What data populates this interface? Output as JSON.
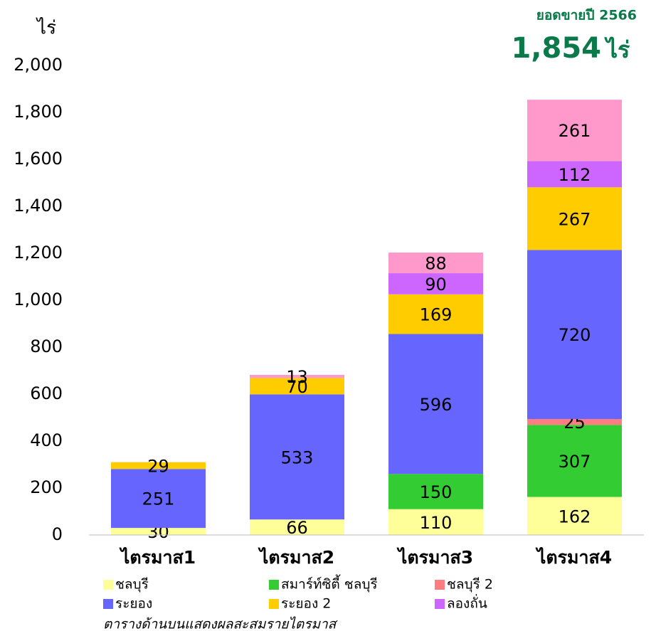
{
  "chart_data": {
    "type": "stacked_bar",
    "y_label": "ไร่",
    "annotation": {
      "label": "ยอดขายปี 2566",
      "total": "1,854",
      "unit": "ไร่"
    },
    "footnote": "ตารางด้านบนแสดงผลสะสมรายไตรมาส",
    "categories": [
      "ไตรมาส1",
      "ไตรมาส2",
      "ไตรมาส3",
      "ไตรมาส4"
    ],
    "series": [
      {
        "name": "ชลบุรี",
        "color": "#ffff99",
        "values": [
          30,
          66,
          110,
          162
        ]
      },
      {
        "name": "สมาร์ท์ซิตี้ ชลบุรี",
        "color": "#33cc33",
        "values": [
          null,
          null,
          150,
          307
        ]
      },
      {
        "name": "ชลบุรี 2",
        "color": "#ff7c80",
        "values": [
          null,
          null,
          null,
          25
        ]
      },
      {
        "name": "ระยอง",
        "color": "#6666ff",
        "values": [
          251,
          533,
          596,
          720
        ]
      },
      {
        "name": "ระยอง 2",
        "color": "#ffcc00",
        "values": [
          29,
          70,
          169,
          267
        ]
      },
      {
        "name": "ลองถั่น",
        "color": "#cc66ff",
        "values": [
          null,
          null,
          90,
          112
        ]
      },
      {
        "color": "#ff99cc",
        "values": [
          null,
          13,
          88,
          261
        ]
      }
    ],
    "ylim": [
      0,
      2000
    ],
    "yticks": [
      0,
      200,
      400,
      600,
      800,
      {
        "value": 1000,
        "label": "1,000"
      },
      {
        "value": 1200,
        "label": "1,200"
      },
      {
        "value": 1400,
        "label": "1,400"
      },
      {
        "value": 1600,
        "label": "1,600"
      },
      {
        "value": 1800,
        "label": "1,800"
      },
      {
        "value": 2000,
        "label": "2,000"
      }
    ],
    "grid": false
  }
}
